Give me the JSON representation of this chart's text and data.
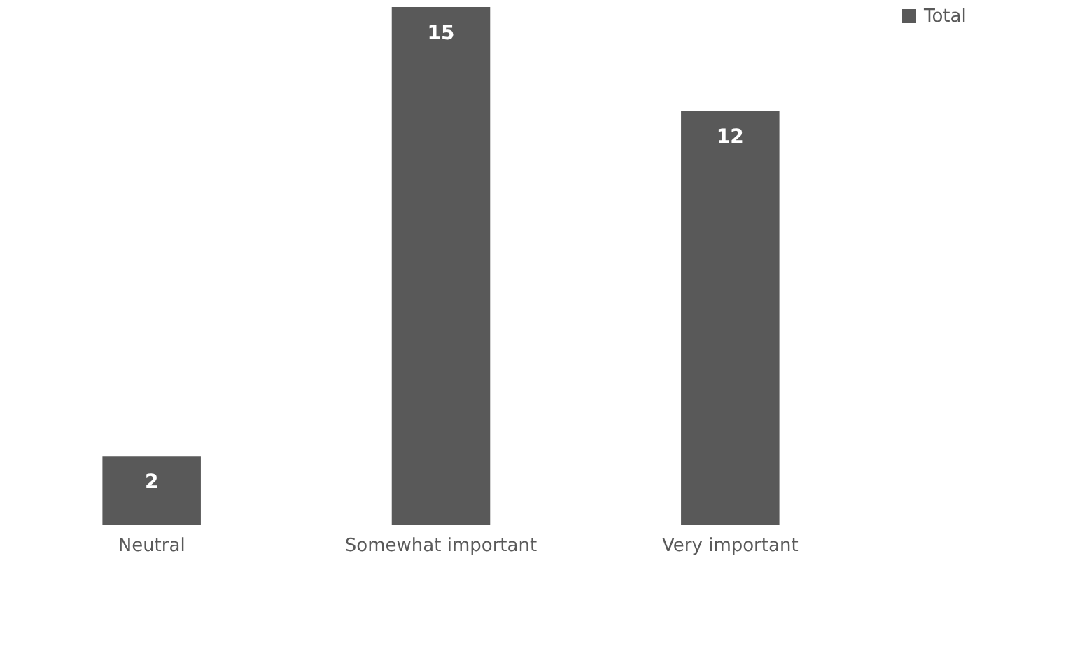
{
  "chart_data": {
    "type": "bar",
    "categories": [
      "Neutral",
      "Somewhat important",
      "Very important"
    ],
    "series": [
      {
        "name": "Total",
        "color": "#595959",
        "values": [
          2,
          15,
          12
        ]
      }
    ],
    "data_labels": true,
    "legend": "right",
    "grid": false
  }
}
